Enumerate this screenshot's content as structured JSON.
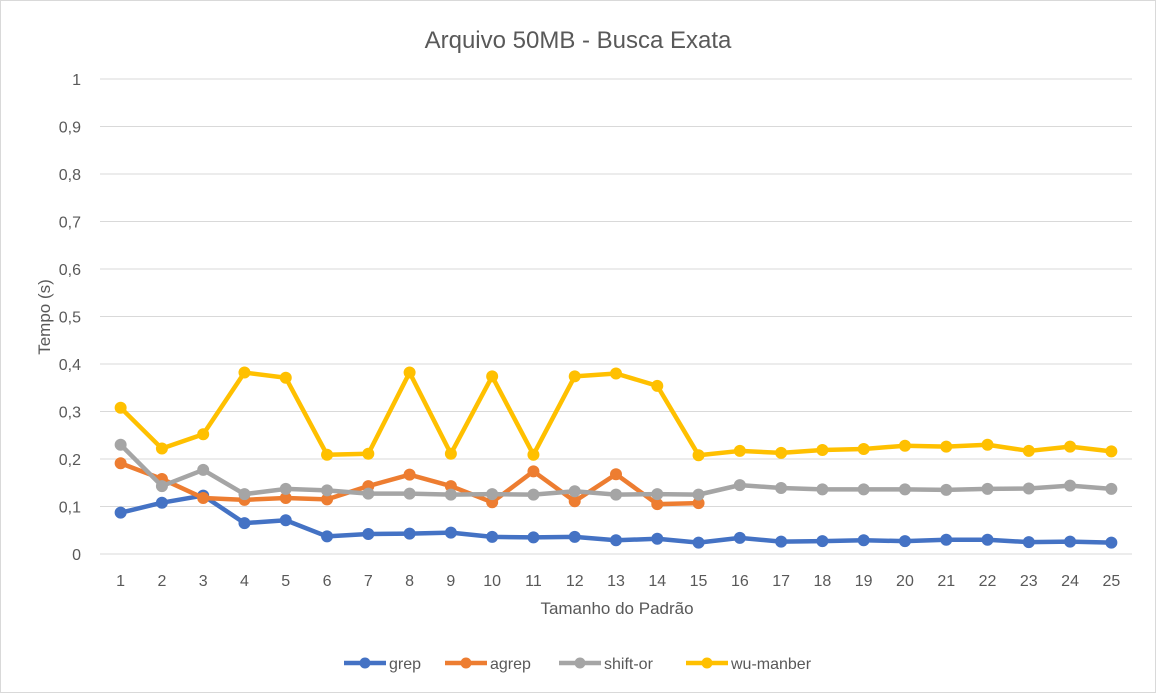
{
  "chart_data": {
    "type": "line",
    "title": "Arquivo 50MB - Busca Exata",
    "xlabel": "Tamanho do Padrão",
    "ylabel": "Tempo (s)",
    "x": [
      "1",
      "2",
      "3",
      "4",
      "5",
      "6",
      "7",
      "8",
      "9",
      "10",
      "11",
      "12",
      "13",
      "14",
      "15",
      "16",
      "17",
      "18",
      "19",
      "20",
      "21",
      "22",
      "23",
      "24",
      "25"
    ],
    "ylim": [
      0,
      1
    ],
    "yticks": [
      "0",
      "0,1",
      "0,2",
      "0,3",
      "0,4",
      "0,5",
      "0,6",
      "0,7",
      "0,8",
      "0,9",
      "1"
    ],
    "grid": true,
    "legend_position": "bottom",
    "series": [
      {
        "name": "grep",
        "color": "#4472C4",
        "values": [
          0.087,
          0.108,
          0.123,
          0.065,
          0.071,
          0.037,
          0.042,
          0.043,
          0.045,
          0.036,
          0.035,
          0.036,
          0.029,
          0.032,
          0.024,
          0.034,
          0.026,
          0.027,
          0.029,
          0.027,
          0.03,
          0.03,
          0.025,
          0.026,
          0.024
        ]
      },
      {
        "name": "agrep",
        "color": "#ED7D31",
        "values": [
          0.191,
          0.158,
          0.118,
          0.114,
          0.118,
          0.115,
          0.143,
          0.167,
          0.143,
          0.109,
          0.174,
          0.111,
          0.168,
          0.105,
          0.107,
          null,
          null,
          null,
          null,
          null,
          null,
          null,
          null,
          null,
          null
        ]
      },
      {
        "name": "shift-or",
        "color": "#A5A5A5",
        "values": [
          0.23,
          0.143,
          0.177,
          0.126,
          0.137,
          0.134,
          0.127,
          0.127,
          0.125,
          0.126,
          0.125,
          0.132,
          0.125,
          0.126,
          0.125,
          0.145,
          0.139,
          0.136,
          0.136,
          0.136,
          0.135,
          0.137,
          0.138,
          0.144,
          0.137
        ]
      },
      {
        "name": "wu-manber",
        "color": "#FFC000",
        "values": [
          0.308,
          0.222,
          0.252,
          0.382,
          0.371,
          0.209,
          0.211,
          0.382,
          0.211,
          0.374,
          0.209,
          0.374,
          0.38,
          0.354,
          0.208,
          0.217,
          0.213,
          0.219,
          0.221,
          0.228,
          0.226,
          0.23,
          0.217,
          0.226,
          0.216
        ]
      }
    ]
  }
}
